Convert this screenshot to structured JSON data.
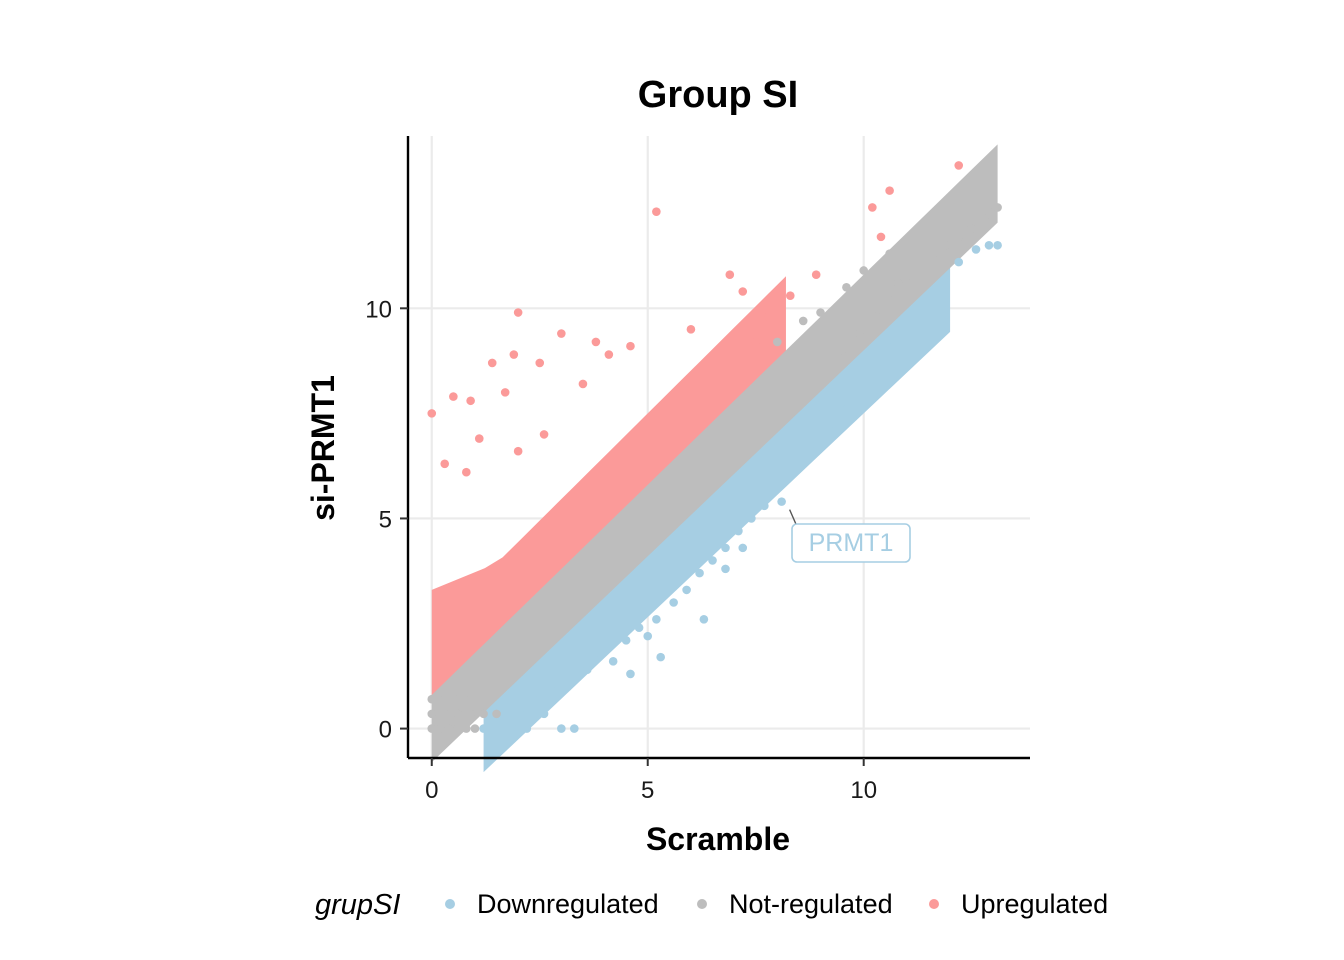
{
  "chart_data": {
    "type": "scatter",
    "title": "Group SI",
    "xlabel": "Scramble",
    "ylabel": "si-PRMT1",
    "xlim": [
      -0.55,
      13.85
    ],
    "ylim": [
      -0.7,
      14.1
    ],
    "x_ticks": [
      0,
      5,
      10
    ],
    "y_ticks": [
      0,
      5,
      10
    ],
    "grid": true,
    "legend": {
      "title": "grupSI",
      "position": "bottom",
      "entries": [
        "Downregulated",
        "Not-regulated",
        "Upregulated"
      ]
    },
    "colors": {
      "Downregulated": "#a6cee3",
      "Not-regulated": "#bdbdbd",
      "Upregulated": "#fb9a99"
    },
    "annotations": [
      {
        "label": "PRMT1",
        "x": 8.1,
        "y": 5.4,
        "series": "Downregulated"
      }
    ],
    "series": [
      {
        "name": "Downregulated",
        "points": [
          [
            1.2,
            0
          ],
          [
            1.4,
            0
          ],
          [
            1.6,
            0
          ],
          [
            1.8,
            0
          ],
          [
            2.0,
            0
          ],
          [
            2.2,
            0
          ],
          [
            3.0,
            0
          ],
          [
            3.3,
            0
          ],
          [
            1.9,
            0.35
          ],
          [
            2.2,
            0.35
          ],
          [
            2.6,
            0.35
          ],
          [
            2.1,
            0.7
          ],
          [
            2.5,
            0.7
          ],
          [
            2.9,
            0.9
          ],
          [
            3.2,
            1.1
          ],
          [
            3.6,
            1.4
          ],
          [
            3.9,
            1.8
          ],
          [
            4.2,
            1.6
          ],
          [
            4.5,
            2.1
          ],
          [
            4.8,
            2.4
          ],
          [
            5.2,
            2.6
          ],
          [
            5.6,
            3.0
          ],
          [
            5.9,
            3.3
          ],
          [
            6.2,
            3.7
          ],
          [
            6.5,
            4.0
          ],
          [
            6.8,
            4.3
          ],
          [
            7.1,
            4.7
          ],
          [
            7.4,
            5.0
          ],
          [
            7.7,
            5.3
          ],
          [
            8.1,
            5.4
          ],
          [
            8.5,
            6.2
          ],
          [
            8.8,
            6.6
          ],
          [
            9.2,
            7.1
          ],
          [
            9.6,
            7.6
          ],
          [
            9.9,
            8.1
          ],
          [
            10.3,
            8.6
          ],
          [
            10.7,
            9.1
          ],
          [
            11.0,
            9.6
          ],
          [
            11.4,
            10.1
          ],
          [
            11.8,
            10.6
          ],
          [
            12.2,
            11.1
          ],
          [
            12.6,
            11.4
          ],
          [
            12.9,
            11.5
          ],
          [
            13.1,
            11.5
          ],
          [
            5.3,
            1.7
          ],
          [
            4.6,
            1.3
          ],
          [
            6.3,
            2.6
          ],
          [
            6.8,
            3.8
          ],
          [
            7.2,
            4.3
          ],
          [
            9.4,
            7.8
          ],
          [
            8.9,
            7.5
          ],
          [
            5.0,
            2.2
          ]
        ]
      },
      {
        "name": "Not-regulated",
        "points": [
          [
            0,
            0
          ],
          [
            0.2,
            0
          ],
          [
            0.4,
            0
          ],
          [
            0.6,
            0
          ],
          [
            0.8,
            0
          ],
          [
            1.0,
            0
          ],
          [
            0,
            0.35
          ],
          [
            0.3,
            0.35
          ],
          [
            0.6,
            0.35
          ],
          [
            0.9,
            0.35
          ],
          [
            1.2,
            0.35
          ],
          [
            1.5,
            0.35
          ],
          [
            0,
            0.7
          ],
          [
            0.3,
            0.7
          ],
          [
            0.6,
            0.7
          ],
          [
            0.9,
            0.7
          ],
          [
            9.5,
            9.0
          ],
          [
            9.9,
            9.4
          ],
          [
            10.3,
            9.8
          ],
          [
            10.7,
            10.2
          ],
          [
            11.0,
            10.6
          ],
          [
            11.3,
            10.9
          ],
          [
            11.6,
            11.2
          ],
          [
            11.9,
            11.5
          ],
          [
            12.2,
            11.7
          ],
          [
            12.5,
            11.9
          ],
          [
            12.8,
            12.1
          ],
          [
            13.1,
            12.4
          ],
          [
            12.9,
            12.3
          ],
          [
            9.0,
            9.9
          ],
          [
            9.6,
            10.5
          ],
          [
            8.6,
            9.7
          ],
          [
            10.0,
            10.9
          ],
          [
            10.8,
            10.6
          ],
          [
            8.0,
            9.2
          ],
          [
            10.6,
            11.3
          ]
        ]
      },
      {
        "name": "Upregulated",
        "points": [
          [
            12.2,
            13.4
          ],
          [
            10.6,
            12.8
          ],
          [
            10.2,
            12.4
          ],
          [
            5.2,
            12.3
          ],
          [
            6.9,
            10.8
          ],
          [
            10.4,
            11.7
          ],
          [
            2.0,
            9.9
          ],
          [
            3.0,
            9.4
          ],
          [
            1.9,
            8.9
          ],
          [
            3.8,
            9.2
          ],
          [
            4.6,
            9.1
          ],
          [
            6.0,
            9.5
          ],
          [
            7.8,
            9.8
          ],
          [
            8.9,
            10.8
          ],
          [
            0.0,
            7.5
          ],
          [
            0.5,
            7.9
          ],
          [
            0.9,
            7.8
          ],
          [
            1.4,
            8.7
          ],
          [
            1.7,
            8.0
          ],
          [
            2.5,
            8.7
          ],
          [
            3.5,
            8.2
          ],
          [
            4.1,
            8.9
          ],
          [
            7.5,
            9.2
          ],
          [
            8.3,
            10.3
          ],
          [
            7.2,
            10.4
          ],
          [
            0.3,
            6.3
          ],
          [
            0.8,
            6.1
          ],
          [
            1.1,
            6.9
          ],
          [
            2.0,
            6.6
          ],
          [
            2.6,
            7.0
          ]
        ]
      }
    ]
  }
}
